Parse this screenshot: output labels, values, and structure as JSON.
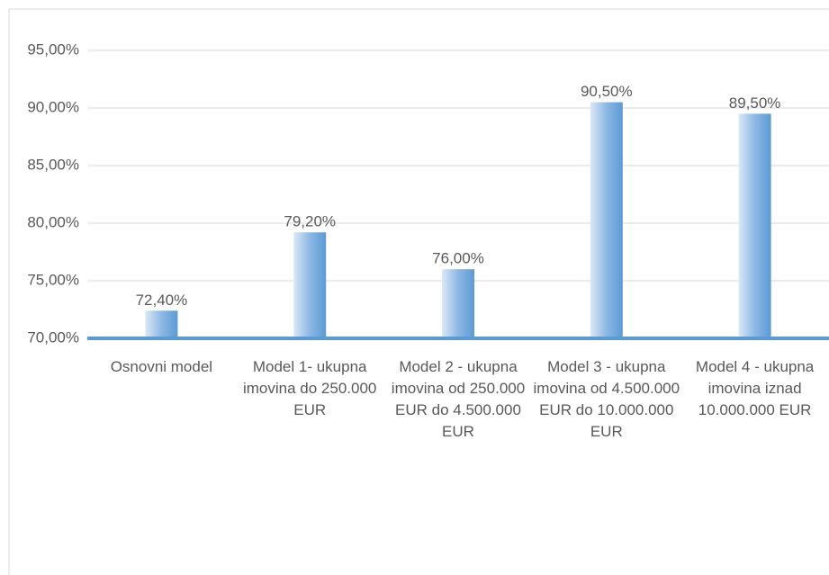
{
  "chart_data": {
    "type": "bar",
    "categories": [
      "Osnovni model",
      "Model 1- ukupna imovina do 250.000 EUR",
      "Model 2 - ukupna imovina od 250.000 EUR do 4.500.000 EUR",
      "Model 3 - ukupna imovina od 4.500.000 EUR do 10.000.000 EUR",
      "Model 4 - ukupna imovina iznad 10.000.000 EUR"
    ],
    "values": [
      72.4,
      79.2,
      76.0,
      90.5,
      89.5
    ],
    "value_labels": [
      "72,40%",
      "79,20%",
      "76,00%",
      "90,50%",
      "89,50%"
    ],
    "color": "#5b9bd5",
    "ylim": [
      70,
      95
    ],
    "yticks": [
      {
        "value": 70,
        "label": "70,00%"
      },
      {
        "value": 75,
        "label": "75,00%"
      },
      {
        "value": 80,
        "label": "80,00%"
      },
      {
        "value": 85,
        "label": "85,00%"
      },
      {
        "value": 90,
        "label": "90,00%"
      },
      {
        "value": 95,
        "label": "95,00%"
      }
    ],
    "grid": true
  }
}
